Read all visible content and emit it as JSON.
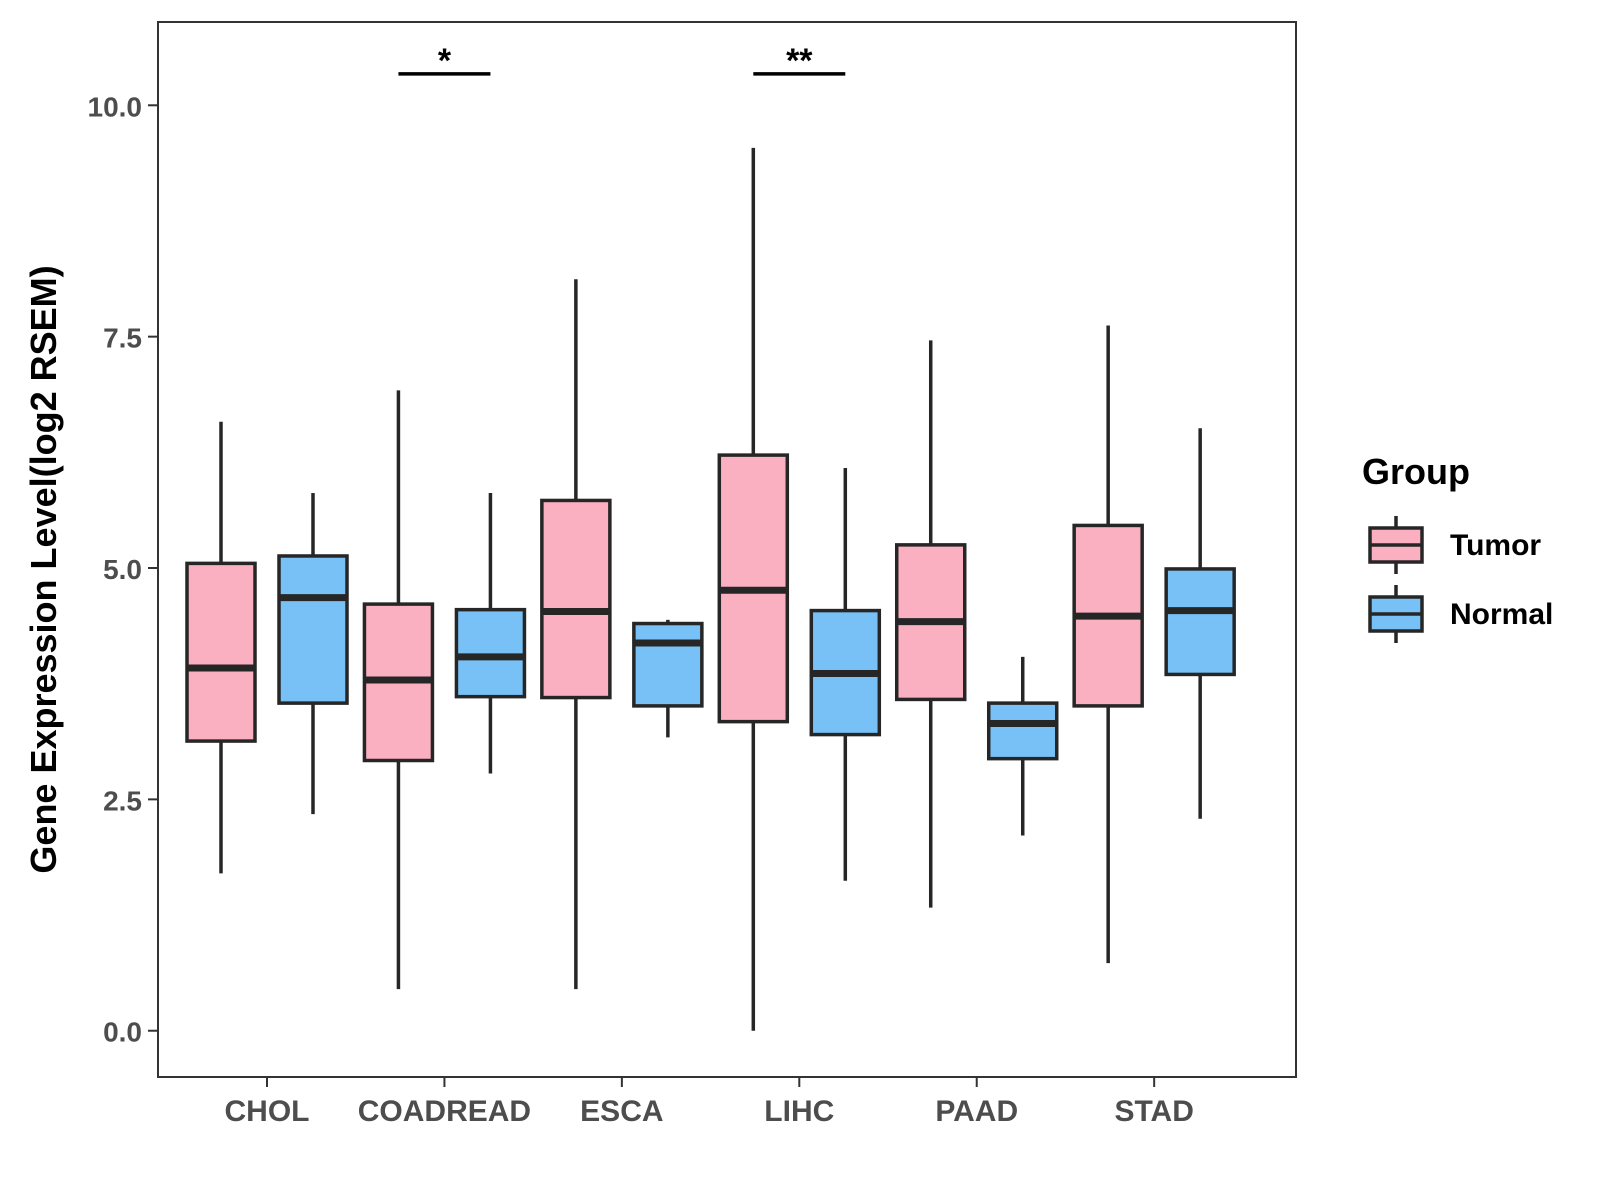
{
  "chart_data": {
    "type": "boxplot",
    "title": "",
    "xlabel": "",
    "ylabel": "Gene Expression Level(log2 RSEM)",
    "ylim": [
      -0.5,
      10.9
    ],
    "yticks": [
      0.0,
      2.5,
      5.0,
      7.5,
      10.0
    ],
    "ytick_labels": [
      "0.0",
      "2.5",
      "5.0",
      "7.5",
      "10.0"
    ],
    "grid": false,
    "categories": [
      "CHOL",
      "COADREAD",
      "ESCA",
      "LIHC",
      "PAAD",
      "STAD"
    ],
    "legend": {
      "title": "Group",
      "position": "right",
      "entries": [
        {
          "name": "Tumor",
          "color": "#fbb0c2"
        },
        {
          "name": "Normal",
          "color": "#78c1f7"
        }
      ]
    },
    "series": [
      {
        "name": "Tumor",
        "color": "#fbb0c2",
        "boxes": [
          {
            "category": "CHOL",
            "min": 1.7,
            "q1": 3.13,
            "median": 3.92,
            "q3": 5.05,
            "max": 6.58
          },
          {
            "category": "COADREAD",
            "min": 0.45,
            "q1": 2.92,
            "median": 3.79,
            "q3": 4.61,
            "max": 6.92
          },
          {
            "category": "ESCA",
            "min": 0.45,
            "q1": 3.6,
            "median": 4.53,
            "q3": 5.73,
            "max": 8.12
          },
          {
            "category": "LIHC",
            "min": 0.0,
            "q1": 3.34,
            "median": 4.76,
            "q3": 6.22,
            "max": 9.54
          },
          {
            "category": "PAAD",
            "min": 1.33,
            "q1": 3.58,
            "median": 4.42,
            "q3": 5.25,
            "max": 7.46
          },
          {
            "category": "STAD",
            "min": 0.73,
            "q1": 3.51,
            "median": 4.48,
            "q3": 5.46,
            "max": 7.62
          }
        ]
      },
      {
        "name": "Normal",
        "color": "#78c1f7",
        "boxes": [
          {
            "category": "CHOL",
            "min": 2.34,
            "q1": 3.54,
            "median": 4.68,
            "q3": 5.13,
            "max": 5.81
          },
          {
            "category": "COADREAD",
            "min": 2.78,
            "q1": 3.61,
            "median": 4.04,
            "q3": 4.55,
            "max": 5.81
          },
          {
            "category": "ESCA",
            "min": 3.17,
            "q1": 3.51,
            "median": 4.19,
            "q3": 4.4,
            "max": 4.44
          },
          {
            "category": "LIHC",
            "min": 1.62,
            "q1": 3.2,
            "median": 3.86,
            "q3": 4.54,
            "max": 6.08
          },
          {
            "category": "PAAD",
            "min": 2.11,
            "q1": 2.94,
            "median": 3.32,
            "q3": 3.54,
            "max": 4.04
          },
          {
            "category": "STAD",
            "min": 2.29,
            "q1": 3.85,
            "median": 4.54,
            "q3": 4.99,
            "max": 6.51
          }
        ]
      }
    ],
    "annotations": [
      {
        "category": "COADREAD",
        "label": "*",
        "y": 10.34
      },
      {
        "category": "LIHC",
        "label": "**",
        "y": 10.34
      }
    ]
  }
}
